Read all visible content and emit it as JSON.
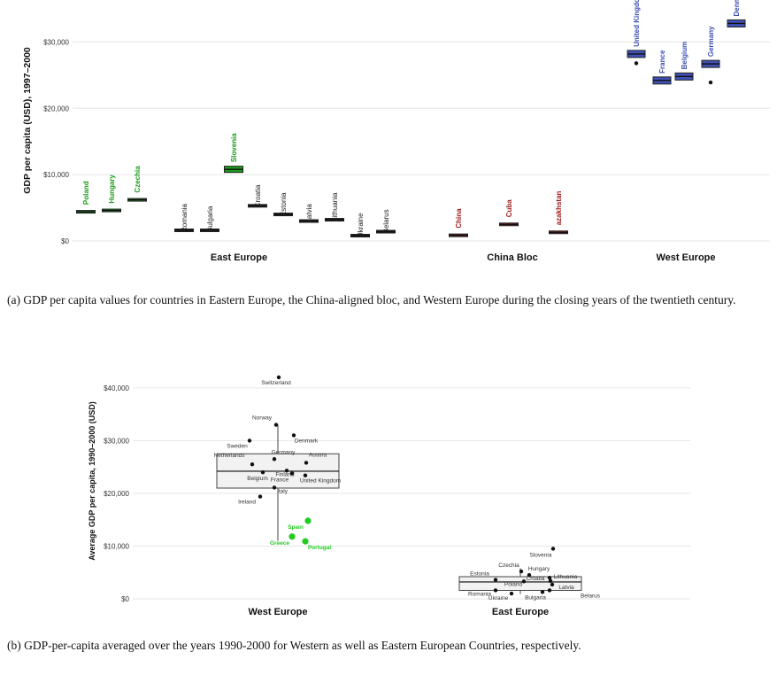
{
  "figure_a": {
    "caption": "(a) GDP per capita values for countries in Eastern Europe, the China-aligned bloc, and Western Europe during the closing years of the twentieth century.",
    "chart_data": {
      "type": "box",
      "ylabel": "GDP per capita (USD), 1997–2000",
      "ylim": [
        0,
        35000
      ],
      "yticks": [
        0,
        10000,
        20000,
        30000
      ],
      "ytick_labels": [
        "$0",
        "$10,000",
        "$20,000",
        "$30,000"
      ],
      "groups": [
        "East Europe",
        "China Bloc",
        "West Europe"
      ],
      "group_colors": {
        "green": "#1a9c1a",
        "black": "#222222",
        "red": "#a01c1c",
        "blue": "#3f51b5"
      },
      "countries": [
        {
          "name": "Poland",
          "value": 4400,
          "color": "green"
        },
        {
          "name": "Hungary",
          "value": 4600,
          "color": "green"
        },
        {
          "name": "Czechia",
          "value": 6200,
          "color": "green"
        },
        {
          "name": "Slovenia",
          "value": 10800,
          "color": "green"
        },
        {
          "name": "Romania",
          "value": 1600,
          "color": "black"
        },
        {
          "name": "Bulgaria",
          "value": 1600,
          "color": "black"
        },
        {
          "name": "Croatia",
          "value": 5300,
          "color": "black"
        },
        {
          "name": "Estonia",
          "value": 4000,
          "color": "black"
        },
        {
          "name": "Latvia",
          "value": 3000,
          "color": "black"
        },
        {
          "name": "Lithuania",
          "value": 3200,
          "color": "black"
        },
        {
          "name": "Ukraine",
          "value": 800,
          "color": "black"
        },
        {
          "name": "Belarus",
          "value": 1400,
          "color": "black"
        },
        {
          "name": "China",
          "value": 850,
          "color": "red"
        },
        {
          "name": "Cuba",
          "value": 2500,
          "color": "red"
        },
        {
          "name": "Kazakhstan",
          "display": "azakhstan",
          "value": 1300,
          "color": "red"
        },
        {
          "name": "United Kingdom",
          "value": 28200,
          "color": "blue"
        },
        {
          "name": "France",
          "value": 24200,
          "color": "blue"
        },
        {
          "name": "Belgium",
          "value": 24800,
          "color": "blue"
        },
        {
          "name": "Germany",
          "value": 26700,
          "color": "blue"
        },
        {
          "name": "Denmark",
          "value": 32800,
          "color": "blue"
        }
      ]
    }
  },
  "figure_b": {
    "caption": "(b) GDP-per-capita averaged over the years 1990-2000 for Western as well as Eastern European Countries, respectively.",
    "chart_data": {
      "type": "box",
      "ylabel": "Average GDP per capita, 1990–2000 (USD)",
      "ylim": [
        0,
        42000
      ],
      "yticks": [
        0,
        10000,
        20000,
        30000,
        40000
      ],
      "ytick_labels": [
        "$0",
        "$10,000",
        "$20,000",
        "$30,000",
        "$40,000"
      ],
      "categories": [
        "West Europe",
        "East Europe"
      ],
      "boxes": [
        {
          "category": "West Europe",
          "q1": 21000,
          "median": 24200,
          "q3": 27500,
          "whisker_low": 11000,
          "whisker_high": 33000
        },
        {
          "category": "East Europe",
          "q1": 1600,
          "median": 3200,
          "q3": 4200,
          "whisker_low": 900,
          "whisker_high": 5800
        }
      ],
      "points": [
        {
          "name": "Switzerland",
          "category": "West Europe",
          "value": 42000
        },
        {
          "name": "Norway",
          "category": "West Europe",
          "value": 33000
        },
        {
          "name": "Denmark",
          "category": "West Europe",
          "value": 31000
        },
        {
          "name": "Sweden",
          "category": "West Europe",
          "value": 30000
        },
        {
          "name": "Netherlands",
          "category": "West Europe",
          "value": 25500
        },
        {
          "name": "Germany",
          "category": "West Europe",
          "value": 26500
        },
        {
          "name": "Austria",
          "category": "West Europe",
          "value": 25800
        },
        {
          "name": "Finland",
          "category": "West Europe",
          "value": 24300
        },
        {
          "name": "Belgium",
          "category": "West Europe",
          "value": 24000
        },
        {
          "name": "France",
          "category": "West Europe",
          "value": 23800
        },
        {
          "name": "United Kingdom",
          "category": "West Europe",
          "value": 23400
        },
        {
          "name": "Italy",
          "category": "West Europe",
          "value": 21100
        },
        {
          "name": "Ireland",
          "category": "West Europe",
          "value": 19400
        },
        {
          "name": "Spain",
          "category": "West Europe",
          "value": 14800,
          "highlight": true
        },
        {
          "name": "Greece",
          "category": "West Europe",
          "value": 11800,
          "highlight": true
        },
        {
          "name": "Portugal",
          "category": "West Europe",
          "value": 10900,
          "highlight": true
        },
        {
          "name": "Slovenia",
          "category": "East Europe",
          "value": 9500
        },
        {
          "name": "Czechia",
          "category": "East Europe",
          "value": 5200
        },
        {
          "name": "Hungary",
          "category": "East Europe",
          "value": 4500
        },
        {
          "name": "Estonia",
          "category": "East Europe",
          "value": 3600
        },
        {
          "name": "Lithuania",
          "category": "East Europe",
          "value": 4000
        },
        {
          "name": "Romania",
          "category": "East Europe",
          "value": 1600
        },
        {
          "name": "Poland",
          "category": "East Europe",
          "value": 3300
        },
        {
          "name": "Croatia",
          "category": "East Europe",
          "value": 3400
        },
        {
          "name": "Latvia",
          "category": "East Europe",
          "value": 2700
        },
        {
          "name": "Ukraine",
          "category": "East Europe",
          "value": 1000
        },
        {
          "name": "Bulgaria",
          "category": "East Europe",
          "value": 1300
        },
        {
          "name": "Belarus",
          "category": "East Europe",
          "value": 1600
        }
      ],
      "highlight_color": "#22cc22"
    }
  }
}
